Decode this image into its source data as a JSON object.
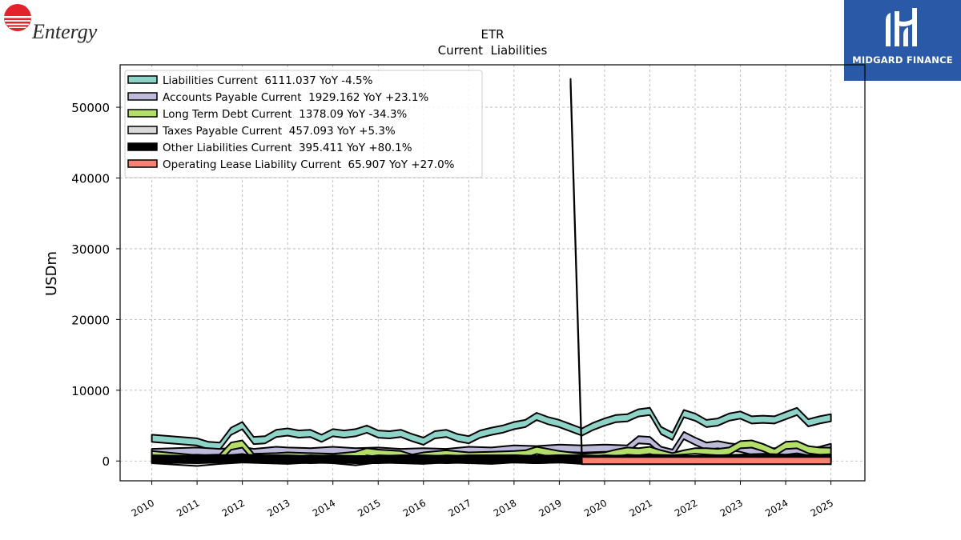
{
  "brand": {
    "left_logo_text": "Entergy",
    "right_logo_text": "MIDGARD FINANCE",
    "right_bg": "#2a5aa7"
  },
  "chart_data": {
    "type": "area",
    "title": "ETR",
    "subtitle": "Current  Liabilities",
    "ylabel": "USDm",
    "xlabel": "",
    "ylim": [
      -2800,
      56000
    ],
    "xlim": [
      2009.3,
      2025.75
    ],
    "y_ticks": [
      0,
      10000,
      20000,
      30000,
      40000,
      50000
    ],
    "x_ticks": [
      2010,
      2011,
      2012,
      2013,
      2014,
      2015,
      2016,
      2017,
      2018,
      2019,
      2020,
      2021,
      2022,
      2023,
      2024,
      2025
    ],
    "grid": true,
    "legend_position": "top-left",
    "series": [
      {
        "name": "Liabilities Current",
        "legend_label": "Liabilities Current  6111.037 YoY -4.5%",
        "color": "#8dd3c7",
        "x": [
          2010,
          2011,
          2011.25,
          2011.5,
          2011.75,
          2012,
          2012.25,
          2012.5,
          2012.75,
          2013,
          2013.25,
          2013.5,
          2013.75,
          2014,
          2014.25,
          2014.5,
          2014.75,
          2015,
          2015.25,
          2015.5,
          2015.75,
          2016,
          2016.25,
          2016.5,
          2016.75,
          2017,
          2017.25,
          2017.5,
          2017.75,
          2018,
          2018.25,
          2018.5,
          2018.75,
          2019,
          2019.25,
          2019.5,
          2019.75,
          2020,
          2020.25,
          2020.5,
          2020.75,
          2021,
          2021.25,
          2021.5,
          2021.75,
          2022,
          2022.25,
          2022.5,
          2022.75,
          2023,
          2023.25,
          2023.5,
          2023.75,
          2024,
          2024.25,
          2024.5,
          2024.75,
          2025
        ],
        "y": [
          3200,
          2700,
          2200,
          2100,
          4200,
          5000,
          2900,
          3000,
          3900,
          4100,
          3800,
          3900,
          3200,
          4000,
          3800,
          4000,
          4500,
          3800,
          3700,
          3900,
          3300,
          2800,
          3700,
          3900,
          3300,
          3000,
          3800,
          4200,
          4500,
          5000,
          5300,
          6300,
          5700,
          5300,
          4700,
          4100,
          4900,
          5500,
          6000,
          6100,
          6800,
          7000,
          4300,
          3500,
          6700,
          6200,
          5300,
          5500,
          6200,
          6500,
          5800,
          5900,
          5800,
          6400,
          7000,
          5400,
          5800,
          6111.037
        ]
      },
      {
        "name": "Accounts Payable Current",
        "legend_label": "Accounts Payable Current  1929.162 YoY +23.1%",
        "color": "#bebada",
        "x": [
          2010,
          2011,
          2011.5,
          2012,
          2012.25,
          2012.75,
          2013,
          2013.5,
          2014,
          2014.5,
          2015,
          2015.5,
          2016,
          2016.5,
          2017,
          2017.5,
          2018,
          2018.5,
          2019,
          2019.5,
          2020,
          2020.5,
          2020.75,
          2021,
          2021.25,
          2021.5,
          2021.75,
          2022,
          2022.25,
          2022.5,
          2022.75,
          2023,
          2023.25,
          2023.5,
          2023.75,
          2024,
          2024.25,
          2024.5,
          2024.75,
          2025
        ],
        "y": [
          1200,
          1400,
          1200,
          1500,
          1200,
          1500,
          1400,
          1300,
          1500,
          1300,
          1400,
          1200,
          1300,
          1200,
          1500,
          1400,
          1700,
          1600,
          1800,
          1700,
          1800,
          1700,
          3000,
          2900,
          1500,
          1100,
          3600,
          2800,
          2100,
          2300,
          2000,
          1800,
          1400,
          1200,
          1300,
          1400,
          1600,
          1300,
          1500,
          1929.162
        ]
      },
      {
        "name": "Long Term Debt Current",
        "legend_label": "Long Term Debt Current  1378.09 YoY -34.3%",
        "color": "#b3de69",
        "x": [
          2010,
          2011,
          2011.5,
          2011.75,
          2012,
          2012.25,
          2012.75,
          2013,
          2013.5,
          2014,
          2014.5,
          2014.75,
          2015,
          2015.5,
          2015.75,
          2016,
          2016.5,
          2017,
          2017.5,
          2018,
          2018.25,
          2018.5,
          2018.75,
          2019,
          2019.5,
          2020,
          2020.25,
          2020.5,
          2020.75,
          2021,
          2021.25,
          2021.5,
          2021.75,
          2022,
          2022.25,
          2022.5,
          2022.75,
          2023,
          2023.25,
          2023.5,
          2023.75,
          2024,
          2024.25,
          2024.5,
          2024.75,
          2025
        ],
        "y": [
          900,
          300,
          400,
          2100,
          2400,
          500,
          600,
          700,
          600,
          500,
          800,
          1300,
          1100,
          900,
          400,
          700,
          1000,
          700,
          800,
          900,
          1000,
          1500,
          1200,
          900,
          500,
          700,
          1100,
          1400,
          1300,
          1500,
          1000,
          600,
          1000,
          1300,
          1300,
          1200,
          1400,
          2300,
          2400,
          1900,
          1200,
          2200,
          2300,
          1600,
          1400,
          1378.09
        ]
      },
      {
        "name": "Taxes Payable Current",
        "legend_label": "Taxes Payable Current  457.093 YoY +5.3%",
        "color": "#d9d9d9",
        "x": [
          2010,
          2011,
          2011.5,
          2012,
          2012.5,
          2013,
          2013.5,
          2014,
          2014.5,
          2015,
          2015.5,
          2016,
          2016.5,
          2017,
          2017.5,
          2018,
          2018.5,
          2019,
          2019.5,
          2020,
          2020.5,
          2021,
          2021.5,
          2022,
          2022.5,
          2023,
          2023.5,
          2024,
          2024.5,
          2025
        ],
        "y": [
          200,
          -200,
          100,
          300,
          200,
          100,
          300,
          200,
          -100,
          300,
          200,
          100,
          300,
          200,
          100,
          300,
          200,
          300,
          100,
          300,
          200,
          400,
          300,
          500,
          300,
          400,
          500,
          400,
          300,
          457.093
        ]
      },
      {
        "name": "Other Liabilities Current",
        "legend_label": "Other Liabilities Current  395.411 YoY +80.1%",
        "color": "#000000",
        "x": [
          2010,
          2011,
          2011.5,
          2012,
          2012.5,
          2013,
          2013.5,
          2014,
          2014.5,
          2015,
          2015.5,
          2016,
          2016.5,
          2017,
          2017.5,
          2018,
          2018.5,
          2019,
          2019.5,
          2020,
          2020.5,
          2021,
          2021.5,
          2022,
          2022.5,
          2023,
          2023.5,
          2024,
          2024.5,
          2025
        ],
        "y": [
          300,
          200,
          300,
          400,
          300,
          300,
          200,
          300,
          200,
          200,
          300,
          300,
          200,
          300,
          300,
          300,
          200,
          300,
          300,
          200,
          300,
          300,
          200,
          200,
          300,
          200,
          300,
          200,
          300,
          395.411
        ]
      },
      {
        "name": "Operating Lease Liability Current",
        "legend_label": "Operating Lease Liability Current  65.907 YoY +27.0%",
        "color": "#fb8072",
        "x": [
          2019.25,
          2019.5,
          2025
        ],
        "y": [
          53500,
          60,
          65.907
        ]
      }
    ]
  }
}
